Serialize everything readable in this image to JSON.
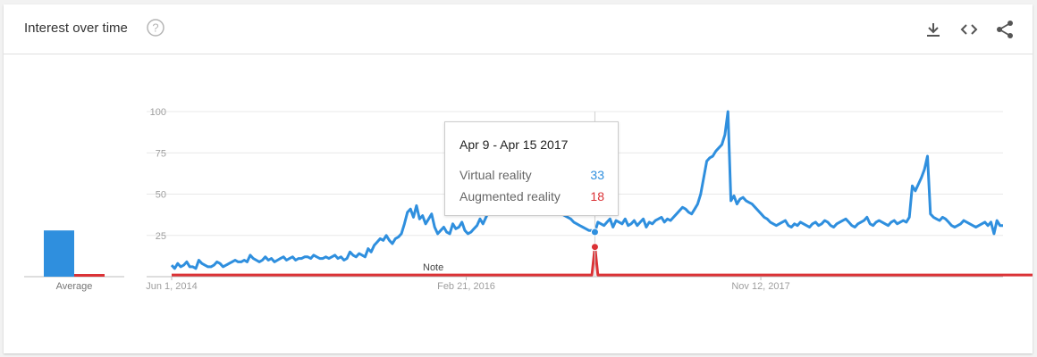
{
  "header": {
    "title": "Interest over time",
    "icons": [
      "help-icon",
      "download-icon",
      "embed-icon",
      "share-icon"
    ]
  },
  "colors": {
    "virtual_reality": "#2f8fde",
    "augmented_reality": "#db3236",
    "gridline": "#e8e8e8",
    "axis_text": "#9e9e9e"
  },
  "average": {
    "label": "Average",
    "values": [
      28,
      1
    ]
  },
  "tooltip": {
    "date": "Apr 9 - Apr 15 2017",
    "rows": [
      {
        "label": "Virtual reality",
        "value": "33"
      },
      {
        "label": "Augmented reality",
        "value": "18"
      }
    ]
  },
  "note": "Note",
  "chart_data": {
    "type": "line",
    "title": "Interest over time",
    "y_ticks": [
      25,
      50,
      75,
      100
    ],
    "ylim": [
      0,
      100
    ],
    "x_ticks": [
      "Jun 1, 2014",
      "Feb 21, 2016",
      "Nov 12, 2017"
    ],
    "x_range": [
      "2014-06-01",
      "2019-04-14"
    ],
    "grid": true,
    "series": [
      {
        "name": "Virtual reality",
        "values": [
          7,
          5,
          8,
          6,
          7,
          9,
          6,
          6,
          5,
          10,
          8,
          7,
          6,
          6,
          7,
          9,
          8,
          6,
          7,
          8,
          9,
          10,
          9,
          9,
          10,
          9,
          13,
          11,
          10,
          9,
          10,
          12,
          10,
          11,
          9,
          10,
          11,
          12,
          10,
          11,
          12,
          10,
          11,
          11,
          12,
          12,
          11,
          13,
          12,
          11,
          11,
          12,
          11,
          12,
          13,
          11,
          12,
          10,
          11,
          15,
          13,
          12,
          14,
          13,
          12,
          17,
          15,
          19,
          21,
          23,
          22,
          25,
          22,
          20,
          23,
          24,
          26,
          32,
          39,
          41,
          36,
          43,
          35,
          37,
          32,
          35,
          38,
          30,
          26,
          28,
          30,
          27,
          26,
          32,
          29,
          30,
          33,
          28,
          26,
          27,
          29,
          31,
          35,
          32,
          36,
          40,
          38,
          45,
          47,
          50,
          55,
          60,
          57,
          62,
          68,
          72,
          75,
          73,
          70,
          68,
          64,
          60,
          55,
          52,
          48,
          45,
          43,
          41,
          40,
          38,
          37,
          36,
          35,
          33,
          32,
          31,
          30,
          29,
          28,
          28,
          27,
          33,
          32,
          31,
          33,
          35,
          30,
          34,
          33,
          32,
          35,
          31,
          32,
          34,
          31,
          33,
          35,
          30,
          33,
          32,
          34,
          35,
          36,
          33,
          35,
          34,
          36,
          38,
          40,
          42,
          41,
          39,
          38,
          41,
          44,
          50,
          60,
          70,
          72,
          73,
          76,
          78,
          80,
          86,
          100,
          46,
          49,
          44,
          47,
          48,
          46,
          45,
          44,
          42,
          40,
          38,
          36,
          35,
          33,
          32,
          31,
          32,
          33,
          34,
          31,
          30,
          32,
          31,
          33,
          32,
          31,
          30,
          32,
          33,
          31,
          32,
          34,
          33,
          31,
          30,
          32,
          33,
          34,
          35,
          33,
          31,
          30,
          32,
          33,
          34,
          36,
          32,
          31,
          33,
          34,
          33,
          32,
          31,
          33,
          34,
          32,
          33,
          34,
          33,
          36,
          55,
          52,
          56,
          60,
          65,
          73,
          38,
          36,
          35,
          34,
          36,
          35,
          33,
          31,
          30,
          31,
          32,
          34,
          33,
          32,
          31,
          30,
          31,
          32,
          33,
          31,
          33,
          26,
          34,
          31,
          31
        ],
        "color": "#2f8fde"
      },
      {
        "name": "Augmented reality",
        "values": [
          1,
          1,
          1,
          1,
          1,
          1,
          1,
          1,
          1,
          1,
          1,
          1,
          1,
          1,
          1,
          1,
          1,
          1,
          1,
          1,
          1,
          1,
          1,
          1,
          1,
          1,
          1,
          1,
          1,
          1,
          1,
          1,
          1,
          1,
          1,
          1,
          1,
          1,
          1,
          1,
          1,
          1,
          1,
          1,
          1,
          1,
          1,
          1,
          1,
          1,
          1,
          1,
          1,
          1,
          1,
          1,
          1,
          1,
          1,
          1,
          1,
          1,
          1,
          1,
          1,
          1,
          1,
          1,
          1,
          1,
          1,
          1,
          1,
          1,
          1,
          1,
          1,
          1,
          1,
          1,
          1,
          1,
          1,
          1,
          1,
          1,
          1,
          1,
          1,
          1,
          1,
          1,
          1,
          1,
          1,
          1,
          1,
          1,
          1,
          1,
          1,
          1,
          1,
          1,
          1,
          1,
          1,
          1,
          1,
          1,
          1,
          1,
          1,
          1,
          1,
          1,
          1,
          1,
          1,
          1,
          1,
          1,
          1,
          1,
          1,
          1,
          1,
          1,
          1,
          1,
          1,
          1,
          1,
          1,
          1,
          1,
          1,
          1,
          1,
          1,
          18,
          1,
          1,
          1,
          1,
          1,
          1,
          1,
          1,
          1,
          1,
          1,
          1,
          1,
          1,
          1,
          1,
          1,
          1,
          1,
          1,
          1,
          1,
          1,
          1,
          1,
          1,
          1,
          1,
          1,
          1,
          1,
          1,
          1,
          1,
          1,
          1,
          1,
          1,
          1,
          1,
          1,
          1,
          1,
          1,
          1,
          1,
          1,
          1,
          1,
          1,
          1,
          1,
          1,
          1,
          1,
          1,
          1,
          1,
          1,
          1,
          1,
          1,
          1,
          1,
          1,
          1,
          1,
          1,
          1,
          1,
          1,
          1,
          1,
          1,
          1,
          1,
          1,
          1,
          1,
          1,
          1,
          1,
          1,
          1,
          1,
          1,
          1,
          1,
          1,
          1,
          1,
          1,
          1,
          1,
          1,
          1,
          1,
          1,
          1,
          1,
          1,
          1,
          1,
          1,
          1,
          1,
          1,
          1,
          1,
          1,
          1,
          1,
          1,
          1,
          1,
          1,
          1,
          1,
          1,
          1,
          1,
          1,
          1,
          1,
          1,
          1,
          1,
          1,
          1,
          1,
          1,
          1,
          1,
          1,
          1,
          1,
          1,
          1,
          1,
          1,
          1,
          1,
          1,
          1,
          1,
          1,
          1,
          1,
          1,
          1,
          1,
          1,
          1,
          1
        ],
        "color": "#db3236"
      }
    ]
  }
}
